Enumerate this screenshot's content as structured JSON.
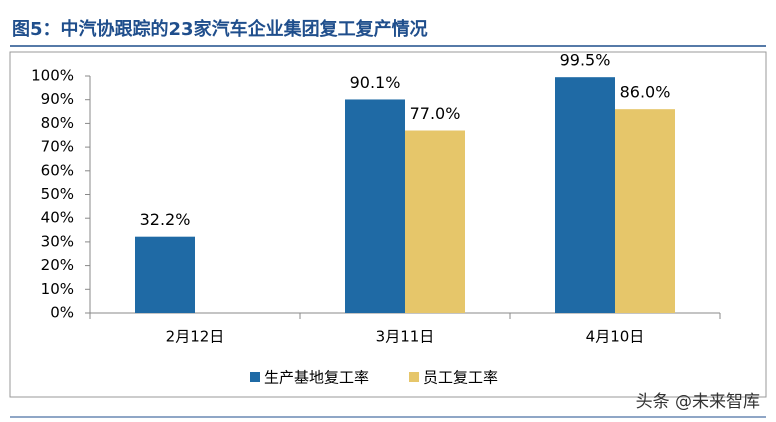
{
  "chart_data": {
    "type": "bar",
    "title": "图5：中汽协跟踪的23家汽车企业集团复工复产情况",
    "categories": [
      "2月12日",
      "3月11日",
      "4月10日"
    ],
    "series": [
      {
        "name": "生产基地复工率",
        "color": "#1f6aa5",
        "values": [
          32.2,
          90.1,
          99.5
        ],
        "value_labels": [
          "32.2%",
          "90.1%",
          "99.5%"
        ]
      },
      {
        "name": "员工复工率",
        "color": "#e6c66a",
        "values": [
          null,
          77.0,
          86.0
        ],
        "value_labels": [
          null,
          "77.0%",
          "86.0%"
        ]
      }
    ],
    "ylim": [
      0,
      100
    ],
    "yticks": [
      {
        "value": 0,
        "label": "0%"
      },
      {
        "value": 10,
        "label": "10%"
      },
      {
        "value": 20,
        "label": "20%"
      },
      {
        "value": 30,
        "label": "30%"
      },
      {
        "value": 40,
        "label": "40%"
      },
      {
        "value": 50,
        "label": "50%"
      },
      {
        "value": 60,
        "label": "60%"
      },
      {
        "value": 70,
        "label": "70%"
      },
      {
        "value": 80,
        "label": "80%"
      },
      {
        "value": 90,
        "label": "90%"
      },
      {
        "value": 100,
        "label": "100%"
      }
    ],
    "grid": false,
    "legend": "bottom"
  },
  "watermark": "头条 @未来智库"
}
